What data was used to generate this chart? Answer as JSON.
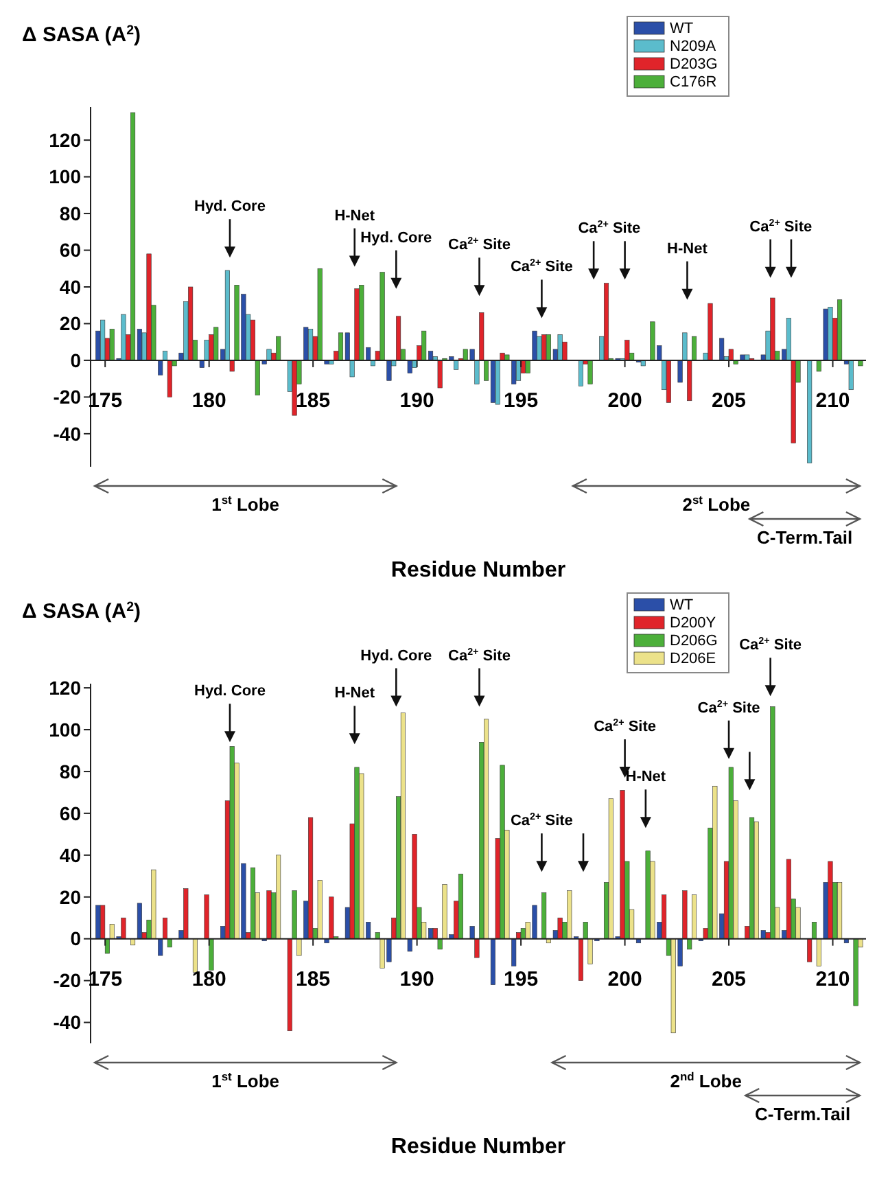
{
  "chart_data": [
    {
      "type": "bar",
      "ylabel": "Δ SASA (A$^{2}$)",
      "xlabel": "Residue Number",
      "xlim": [
        174.3,
        211.6
      ],
      "xticks": [
        175,
        180,
        185,
        190,
        195,
        200,
        205,
        210
      ],
      "ylim": [
        -58,
        138
      ],
      "yticks": [
        -40,
        -20,
        0,
        20,
        40,
        60,
        80,
        100,
        120
      ],
      "legend": "top right",
      "x": [
        175,
        176,
        177,
        178,
        179,
        180,
        181,
        182,
        183,
        184,
        185,
        186,
        187,
        188,
        189,
        190,
        191,
        192,
        193,
        194,
        195,
        196,
        197,
        198,
        199,
        200,
        201,
        202,
        203,
        204,
        205,
        206,
        207,
        208,
        209,
        210,
        211
      ],
      "series": [
        {
          "name": "WT",
          "color": "#2b4fa8",
          "values": [
            16,
            1,
            17,
            -8,
            4,
            -4,
            6,
            36,
            -2,
            0,
            18,
            -2,
            15,
            7,
            -11,
            -7,
            5,
            2,
            6,
            -23,
            -13,
            16,
            6,
            0,
            0,
            1,
            -1,
            8,
            -12,
            0,
            12,
            3,
            3,
            6,
            0,
            28,
            -2
          ]
        },
        {
          "name": "N209A",
          "color": "#5bbccc",
          "values": [
            22,
            25,
            15,
            5,
            32,
            11,
            49,
            25,
            6,
            -17,
            17,
            -2,
            -9,
            -3,
            -3,
            -4,
            2,
            -5,
            -13,
            -24,
            -11,
            13,
            14,
            -14,
            13,
            1,
            -3,
            -16,
            15,
            4,
            2,
            3,
            16,
            23,
            -56,
            29,
            -16
          ]
        },
        {
          "name": "D203G",
          "color": "#e0242a",
          "values": [
            12,
            14,
            58,
            -20,
            40,
            14,
            -6,
            22,
            4,
            -30,
            13,
            5,
            39,
            5,
            24,
            8,
            -15,
            1,
            26,
            4,
            -7,
            14,
            10,
            -2,
            42,
            11,
            0,
            -23,
            -22,
            31,
            6,
            1,
            34,
            -45,
            0,
            23,
            0
          ]
        },
        {
          "name": "C176R",
          "color": "#4caf3a",
          "values": [
            17,
            135,
            30,
            -3,
            11,
            18,
            41,
            -19,
            13,
            -13,
            50,
            15,
            41,
            48,
            6,
            16,
            1,
            6,
            -11,
            3,
            -7,
            14,
            0,
            -13,
            1,
            4,
            21,
            0,
            13,
            0,
            -2,
            0,
            5,
            -12,
            -6,
            33,
            -3
          ]
        }
      ],
      "annotations": [
        "Hyd. Core",
        "H-Net",
        "Hyd. Core",
        "Ca$^{2+}$ Site",
        "Ca$^{2+}$ Site",
        "Ca$^{2+}$ Site",
        "H-Net",
        "Ca$^{2+}$ Site",
        "1$^{st}$ Lobe",
        "2$^{st}$ Lobe",
        "C-Term.Tail"
      ]
    },
    {
      "type": "bar",
      "ylabel": "Δ SASA (A$^{2}$)",
      "xlabel": "Residue Number",
      "xlim": [
        174.3,
        211.6
      ],
      "xticks": [
        175,
        180,
        185,
        190,
        195,
        200,
        205,
        210
      ],
      "ylim": [
        -50,
        122
      ],
      "yticks": [
        -40,
        -20,
        0,
        20,
        40,
        60,
        80,
        100,
        120
      ],
      "legend": "top right",
      "x": [
        175,
        176,
        177,
        178,
        179,
        180,
        181,
        182,
        183,
        184,
        185,
        186,
        187,
        188,
        189,
        190,
        191,
        192,
        193,
        194,
        195,
        196,
        197,
        198,
        199,
        200,
        201,
        202,
        203,
        204,
        205,
        206,
        207,
        208,
        209,
        210,
        211
      ],
      "series": [
        {
          "name": "WT",
          "color": "#2b4fa8",
          "values": [
            16,
            1,
            17,
            -8,
            4,
            0,
            6,
            36,
            -1,
            0,
            18,
            -2,
            15,
            8,
            -11,
            -6,
            5,
            2,
            6,
            -22,
            -13,
            16,
            4,
            1,
            -1,
            1,
            -2,
            8,
            -13,
            -1,
            12,
            0,
            4,
            4,
            0,
            27,
            -2
          ]
        },
        {
          "name": "D200Y",
          "color": "#e0242a",
          "values": [
            16,
            10,
            3,
            10,
            24,
            21,
            66,
            3,
            23,
            -44,
            58,
            20,
            55,
            0,
            10,
            50,
            5,
            18,
            -9,
            48,
            3,
            0,
            10,
            -20,
            0,
            71,
            0,
            21,
            23,
            5,
            37,
            6,
            3,
            38,
            -11,
            37,
            0
          ]
        },
        {
          "name": "D206G",
          "color": "#4caf3a",
          "values": [
            -7,
            0,
            9,
            -4,
            0,
            -15,
            92,
            34,
            22,
            23,
            5,
            1,
            82,
            3,
            68,
            15,
            -5,
            31,
            94,
            83,
            5,
            22,
            8,
            8,
            27,
            37,
            42,
            -8,
            -5,
            53,
            82,
            58,
            111,
            19,
            8,
            27,
            -32
          ]
        },
        {
          "name": "D206E",
          "color": "#ece28a",
          "values": [
            7,
            -3,
            33,
            0,
            -16,
            0,
            84,
            22,
            40,
            -8,
            28,
            0,
            79,
            -14,
            108,
            8,
            26,
            0,
            105,
            52,
            8,
            -2,
            23,
            -12,
            67,
            14,
            37,
            -45,
            21,
            73,
            66,
            56,
            15,
            15,
            -13,
            27,
            -4
          ]
        }
      ],
      "annotations": [
        "Hyd. Core",
        "H-Net",
        "Hyd. Core",
        "Ca$^{2+}$ Site",
        "Ca$^{2+}$ Site",
        "Ca$^{2+}$ Site",
        "H-Net",
        "Ca$^{2+}$ Site",
        "Ca$^{2+}$ Site",
        "1$^{st}$ Lobe",
        "2$^{nd}$ Lobe",
        "C-Term.Tail"
      ]
    }
  ]
}
